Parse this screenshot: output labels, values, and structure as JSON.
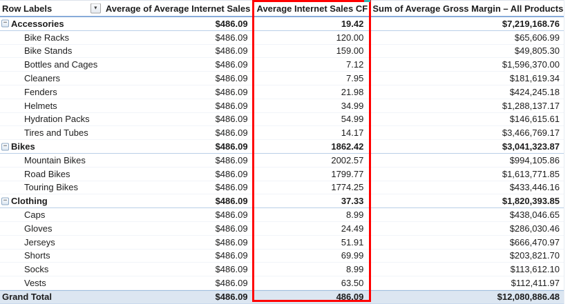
{
  "table": {
    "headers": {
      "row_labels": "Row Labels",
      "avg_internet_sales": "Average of Average Internet Sales",
      "cf": "Average Internet Sales CF",
      "gross_margin": "Sum of Average Gross Margin – All Products"
    },
    "rows": [
      {
        "type": "group",
        "label": "Accessories",
        "avg_internet_sales": "$486.09",
        "cf": "19.42",
        "gross_margin": "$7,219,168.76"
      },
      {
        "type": "item",
        "label": "Bike Racks",
        "avg_internet_sales": "$486.09",
        "cf": "120.00",
        "gross_margin": "$65,606.99"
      },
      {
        "type": "item",
        "label": "Bike Stands",
        "avg_internet_sales": "$486.09",
        "cf": "159.00",
        "gross_margin": "$49,805.30"
      },
      {
        "type": "item",
        "label": "Bottles and Cages",
        "avg_internet_sales": "$486.09",
        "cf": "7.12",
        "gross_margin": "$1,596,370.00"
      },
      {
        "type": "item",
        "label": "Cleaners",
        "avg_internet_sales": "$486.09",
        "cf": "7.95",
        "gross_margin": "$181,619.34"
      },
      {
        "type": "item",
        "label": "Fenders",
        "avg_internet_sales": "$486.09",
        "cf": "21.98",
        "gross_margin": "$424,245.18"
      },
      {
        "type": "item",
        "label": "Helmets",
        "avg_internet_sales": "$486.09",
        "cf": "34.99",
        "gross_margin": "$1,288,137.17"
      },
      {
        "type": "item",
        "label": "Hydration Packs",
        "avg_internet_sales": "$486.09",
        "cf": "54.99",
        "gross_margin": "$146,615.61"
      },
      {
        "type": "item",
        "label": "Tires and Tubes",
        "avg_internet_sales": "$486.09",
        "cf": "14.17",
        "gross_margin": "$3,466,769.17"
      },
      {
        "type": "group",
        "label": "Bikes",
        "avg_internet_sales": "$486.09",
        "cf": "1862.42",
        "gross_margin": "$3,041,323.87"
      },
      {
        "type": "item",
        "label": "Mountain Bikes",
        "avg_internet_sales": "$486.09",
        "cf": "2002.57",
        "gross_margin": "$994,105.86"
      },
      {
        "type": "item",
        "label": "Road Bikes",
        "avg_internet_sales": "$486.09",
        "cf": "1799.77",
        "gross_margin": "$1,613,771.85"
      },
      {
        "type": "item",
        "label": "Touring Bikes",
        "avg_internet_sales": "$486.09",
        "cf": "1774.25",
        "gross_margin": "$433,446.16"
      },
      {
        "type": "group",
        "label": "Clothing",
        "avg_internet_sales": "$486.09",
        "cf": "37.33",
        "gross_margin": "$1,820,393.85"
      },
      {
        "type": "item",
        "label": "Caps",
        "avg_internet_sales": "$486.09",
        "cf": "8.99",
        "gross_margin": "$438,046.65"
      },
      {
        "type": "item",
        "label": "Gloves",
        "avg_internet_sales": "$486.09",
        "cf": "24.49",
        "gross_margin": "$286,030.46"
      },
      {
        "type": "item",
        "label": "Jerseys",
        "avg_internet_sales": "$486.09",
        "cf": "51.91",
        "gross_margin": "$666,470.97"
      },
      {
        "type": "item",
        "label": "Shorts",
        "avg_internet_sales": "$486.09",
        "cf": "69.99",
        "gross_margin": "$203,821.70"
      },
      {
        "type": "item",
        "label": "Socks",
        "avg_internet_sales": "$486.09",
        "cf": "8.99",
        "gross_margin": "$113,612.10"
      },
      {
        "type": "item",
        "label": "Vests",
        "avg_internet_sales": "$486.09",
        "cf": "63.50",
        "gross_margin": "$112,411.97"
      },
      {
        "type": "grand",
        "label": "Grand Total",
        "avg_internet_sales": "$486.09",
        "cf": "486.09",
        "gross_margin": "$12,080,886.48"
      }
    ]
  },
  "icons": {
    "dropdown_glyph": "▼",
    "collapse_glyph": "−"
  },
  "annotation": {
    "highlighted_column": "Average Internet Sales CF"
  },
  "colors": {
    "highlight_border": "#FF0000",
    "grand_total_fill": "#DCE6F1",
    "header_rule": "#87ABD9",
    "group_rule": "#B9CFE7",
    "teal_mark": "#35B3B3"
  }
}
